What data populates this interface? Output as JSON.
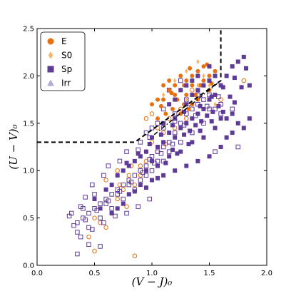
{
  "chart_data": {
    "type": "scatter",
    "xlabel": "(V − J)₀",
    "ylabel": "(U − V)₀",
    "xlim": [
      0.0,
      2.0
    ],
    "ylim": [
      0.0,
      2.5
    ],
    "xticks": [
      "0.0",
      "0.5",
      "1.0",
      "1.5",
      "2.0"
    ],
    "yticks": [
      "0.0",
      "0.5",
      "1.0",
      "1.5",
      "2.0",
      "2.5"
    ],
    "legend_position": "top-left",
    "legend": [
      {
        "label": "E",
        "marker": "circle",
        "color": "#e8700f"
      },
      {
        "label": "S0",
        "marker": "diamond",
        "color": "#f5b468"
      },
      {
        "label": "Sp",
        "marker": "square",
        "color": "#5e3b98"
      },
      {
        "label": "Irr",
        "marker": "triangle",
        "color": "#b3a9d6"
      }
    ],
    "boundary_dashed": [
      [
        0.0,
        1.3
      ],
      [
        0.85,
        1.3
      ],
      [
        1.6,
        1.95
      ],
      [
        1.6,
        2.5
      ]
    ],
    "boundary_dashdot": [
      [
        1.02,
        1.38
      ],
      [
        1.6,
        1.95
      ]
    ],
    "series": [
      {
        "name": "E",
        "marker": "circle",
        "color": "#e8700f",
        "filled": [
          [
            1.0,
            1.7
          ],
          [
            1.05,
            1.75
          ],
          [
            1.1,
            1.9
          ],
          [
            1.15,
            1.95
          ],
          [
            1.2,
            1.9
          ],
          [
            1.25,
            1.85
          ],
          [
            1.3,
            1.95
          ],
          [
            1.35,
            2.0
          ],
          [
            1.4,
            2.05
          ],
          [
            1.45,
            2.1
          ],
          [
            1.5,
            2.0
          ],
          [
            1.55,
            2.05
          ],
          [
            1.2,
            1.8
          ],
          [
            1.25,
            2.0
          ],
          [
            1.3,
            1.8
          ],
          [
            1.35,
            1.9
          ],
          [
            1.1,
            1.75
          ],
          [
            1.15,
            1.85
          ],
          [
            1.4,
            1.85
          ],
          [
            1.45,
            1.95
          ],
          [
            1.22,
            1.75
          ],
          [
            1.28,
            1.7
          ],
          [
            1.32,
            1.65
          ],
          [
            1.18,
            1.65
          ],
          [
            1.4,
            1.75
          ],
          [
            1.5,
            1.85
          ],
          [
            1.12,
            1.6
          ],
          [
            1.05,
            1.55
          ],
          [
            1.25,
            1.6
          ],
          [
            1.35,
            1.7
          ],
          [
            1.38,
            1.8
          ],
          [
            1.42,
            1.9
          ],
          [
            1.28,
            1.9
          ],
          [
            1.17,
            1.82
          ],
          [
            1.08,
            1.68
          ],
          [
            1.48,
            2.12
          ],
          [
            1.52,
            1.92
          ],
          [
            1.33,
            2.08
          ]
        ],
        "open": [
          [
            0.5,
            0.15
          ],
          [
            0.45,
            0.3
          ],
          [
            0.6,
            0.4
          ],
          [
            0.55,
            0.45
          ],
          [
            0.85,
            0.1
          ],
          [
            0.95,
            1.2
          ],
          [
            1.0,
            1.3
          ],
          [
            1.05,
            1.45
          ],
          [
            0.9,
            1.05
          ],
          [
            0.95,
            1.1
          ],
          [
            1.1,
            1.5
          ],
          [
            1.15,
            1.55
          ],
          [
            1.2,
            1.45
          ],
          [
            1.3,
            1.55
          ],
          [
            0.65,
            0.55
          ],
          [
            0.7,
            0.7
          ],
          [
            0.75,
            0.8
          ],
          [
            0.8,
            0.95
          ],
          [
            1.25,
            1.65
          ],
          [
            1.1,
            1.4
          ],
          [
            0.5,
            0.5
          ],
          [
            0.85,
            0.85
          ],
          [
            0.9,
            0.95
          ],
          [
            1.35,
            1.85
          ],
          [
            1.8,
            1.95
          ],
          [
            1.6,
            1.75
          ],
          [
            1.0,
            1.6
          ],
          [
            0.95,
            1.55
          ],
          [
            1.05,
            1.2
          ],
          [
            0.78,
            0.62
          ],
          [
            0.7,
            1.0
          ],
          [
            0.6,
            0.9
          ],
          [
            0.72,
            0.85
          ],
          [
            0.82,
            1.05
          ],
          [
            1.12,
            1.28
          ]
        ]
      },
      {
        "name": "S0",
        "marker": "diamond",
        "color": "#f5b468",
        "filled": [
          [
            1.2,
            1.95
          ],
          [
            1.3,
            2.05
          ],
          [
            1.4,
            2.15
          ],
          [
            1.1,
            1.8
          ],
          [
            1.25,
            1.85
          ],
          [
            1.35,
            1.95
          ],
          [
            1.45,
            2.0
          ],
          [
            1.5,
            1.9
          ],
          [
            1.55,
            1.7
          ],
          [
            1.15,
            1.7
          ],
          [
            1.3,
            1.75
          ],
          [
            1.4,
            1.9
          ]
        ],
        "open": []
      },
      {
        "name": "Sp",
        "marker": "square",
        "color": "#5e3b98",
        "filled": [
          [
            0.5,
            0.7
          ],
          [
            0.55,
            0.6
          ],
          [
            0.6,
            0.8
          ],
          [
            0.65,
            0.85
          ],
          [
            0.7,
            0.95
          ],
          [
            0.75,
            1.0
          ],
          [
            0.8,
            1.05
          ],
          [
            0.85,
            1.1
          ],
          [
            0.9,
            1.15
          ],
          [
            0.95,
            1.2
          ],
          [
            1.0,
            1.1
          ],
          [
            1.05,
            1.25
          ],
          [
            1.1,
            1.3
          ],
          [
            1.15,
            1.4
          ],
          [
            1.2,
            1.35
          ],
          [
            1.25,
            1.45
          ],
          [
            1.3,
            1.5
          ],
          [
            1.35,
            1.55
          ],
          [
            1.4,
            1.6
          ],
          [
            1.45,
            1.65
          ],
          [
            1.5,
            1.75
          ],
          [
            1.55,
            1.8
          ],
          [
            1.6,
            1.9
          ],
          [
            1.65,
            2.0
          ],
          [
            1.7,
            2.1
          ],
          [
            1.75,
            2.15
          ],
          [
            1.8,
            2.2
          ],
          [
            1.85,
            1.9
          ],
          [
            1.2,
            1.55
          ],
          [
            1.3,
            1.7
          ],
          [
            1.1,
            1.5
          ],
          [
            1.0,
            1.35
          ],
          [
            0.95,
            1.0
          ],
          [
            0.9,
            0.85
          ],
          [
            1.05,
            1.05
          ],
          [
            1.15,
            1.15
          ],
          [
            1.25,
            1.2
          ],
          [
            1.35,
            1.3
          ],
          [
            1.45,
            1.35
          ],
          [
            1.55,
            1.45
          ],
          [
            1.65,
            1.55
          ],
          [
            1.7,
            1.4
          ],
          [
            1.6,
            1.25
          ],
          [
            1.5,
            1.15
          ],
          [
            1.4,
            1.1
          ],
          [
            1.3,
            1.05
          ],
          [
            1.2,
            1.0
          ],
          [
            1.1,
            0.95
          ],
          [
            1.0,
            0.9
          ],
          [
            0.8,
            0.75
          ],
          [
            0.75,
            0.65
          ],
          [
            0.7,
            0.6
          ],
          [
            0.65,
            0.55
          ],
          [
            1.35,
            1.95
          ],
          [
            1.4,
            2.0
          ],
          [
            1.45,
            1.9
          ],
          [
            1.5,
            1.95
          ],
          [
            1.25,
            1.85
          ],
          [
            1.3,
            1.9
          ],
          [
            1.2,
            1.75
          ],
          [
            1.15,
            1.7
          ],
          [
            1.35,
            1.8
          ],
          [
            1.4,
            1.85
          ],
          [
            1.5,
            2.1
          ],
          [
            1.55,
            2.0
          ],
          [
            1.6,
            1.55
          ],
          [
            1.65,
            1.35
          ],
          [
            1.7,
            1.6
          ],
          [
            1.75,
            1.5
          ],
          [
            1.8,
            1.45
          ],
          [
            1.85,
            1.55
          ],
          [
            1.12,
            1.08
          ],
          [
            1.22,
            1.18
          ],
          [
            1.32,
            1.28
          ],
          [
            1.42,
            1.42
          ],
          [
            1.52,
            1.52
          ],
          [
            1.62,
            1.62
          ],
          [
            1.72,
            1.72
          ],
          [
            0.85,
            0.78
          ],
          [
            0.95,
            0.82
          ],
          [
            1.05,
            0.92
          ],
          [
            1.18,
            1.22
          ],
          [
            1.28,
            1.38
          ],
          [
            1.38,
            1.48
          ],
          [
            1.48,
            1.58
          ],
          [
            1.58,
            1.68
          ],
          [
            1.68,
            1.78
          ],
          [
            1.78,
            1.88
          ],
          [
            1.28,
            1.62
          ],
          [
            1.18,
            1.48
          ],
          [
            1.08,
            1.38
          ],
          [
            0.98,
            1.28
          ],
          [
            0.88,
            1.18
          ],
          [
            0.78,
            1.08
          ],
          [
            1.42,
            1.68
          ],
          [
            1.52,
            1.78
          ],
          [
            1.62,
            1.88
          ],
          [
            1.72,
            1.98
          ],
          [
            1.82,
            2.08
          ],
          [
            1.33,
            1.42
          ],
          [
            1.43,
            1.52
          ],
          [
            1.53,
            1.62
          ]
        ],
        "open": [
          [
            0.3,
            0.55
          ],
          [
            0.35,
            0.45
          ],
          [
            0.4,
            0.5
          ],
          [
            0.45,
            0.55
          ],
          [
            0.5,
            0.6
          ],
          [
            0.55,
            0.65
          ],
          [
            0.6,
            0.7
          ],
          [
            0.65,
            0.75
          ],
          [
            0.7,
            0.8
          ],
          [
            0.75,
            0.85
          ],
          [
            0.8,
            0.9
          ],
          [
            0.85,
            0.95
          ],
          [
            0.9,
            1.0
          ],
          [
            0.95,
            1.05
          ],
          [
            1.0,
            1.15
          ],
          [
            1.05,
            1.2
          ],
          [
            1.1,
            1.25
          ],
          [
            1.15,
            1.3
          ],
          [
            1.2,
            1.4
          ],
          [
            1.25,
            1.5
          ],
          [
            1.3,
            1.6
          ],
          [
            1.35,
            1.65
          ],
          [
            1.4,
            1.7
          ],
          [
            1.45,
            1.75
          ],
          [
            1.5,
            1.8
          ],
          [
            1.55,
            1.65
          ],
          [
            1.6,
            1.7
          ],
          [
            1.7,
            1.65
          ],
          [
            1.75,
            1.25
          ],
          [
            1.55,
            1.2
          ],
          [
            1.45,
            1.5
          ],
          [
            1.35,
            1.4
          ],
          [
            1.25,
            1.3
          ],
          [
            1.15,
            1.2
          ],
          [
            1.05,
            1.1
          ],
          [
            0.95,
            0.95
          ],
          [
            0.85,
            0.8
          ],
          [
            0.75,
            0.7
          ],
          [
            0.65,
            0.6
          ],
          [
            0.55,
            0.5
          ],
          [
            0.45,
            0.4
          ],
          [
            0.35,
            0.35
          ],
          [
            0.4,
            0.6
          ],
          [
            0.5,
            0.75
          ],
          [
            0.6,
            0.65
          ],
          [
            0.7,
            0.75
          ],
          [
            0.8,
            0.85
          ],
          [
            0.9,
            0.9
          ],
          [
            1.0,
            1.0
          ],
          [
            1.1,
            1.1
          ],
          [
            0.95,
            1.4
          ],
          [
            1.0,
            1.45
          ],
          [
            0.9,
            1.3
          ],
          [
            1.05,
            1.5
          ],
          [
            1.2,
            1.6
          ],
          [
            1.3,
            1.75
          ],
          [
            1.4,
            1.8
          ],
          [
            1.5,
            1.65
          ],
          [
            1.6,
            1.6
          ],
          [
            1.25,
            1.95
          ],
          [
            1.15,
            1.85
          ],
          [
            1.1,
            1.65
          ],
          [
            0.98,
            1.35
          ],
          [
            0.78,
            1.2
          ],
          [
            0.72,
            1.1
          ],
          [
            0.62,
            1.05
          ],
          [
            0.58,
            0.95
          ],
          [
            0.48,
            0.85
          ],
          [
            0.42,
            0.72
          ],
          [
            0.38,
            0.62
          ],
          [
            0.32,
            0.42
          ],
          [
            0.42,
            0.48
          ],
          [
            0.52,
            0.58
          ],
          [
            0.62,
            0.68
          ],
          [
            0.72,
            0.78
          ],
          [
            0.82,
            0.88
          ],
          [
            0.92,
            0.98
          ],
          [
            1.02,
            1.08
          ],
          [
            0.88,
            1.22
          ],
          [
            0.98,
            1.12
          ],
          [
            1.08,
            1.18
          ],
          [
            1.18,
            1.28
          ],
          [
            1.28,
            1.48
          ],
          [
            1.38,
            1.58
          ],
          [
            1.48,
            1.68
          ],
          [
            1.58,
            1.78
          ],
          [
            0.28,
            0.52
          ],
          [
            0.38,
            0.3
          ],
          [
            0.48,
            0.38
          ],
          [
            0.58,
            0.45
          ],
          [
            0.68,
            0.52
          ],
          [
            0.78,
            0.55
          ],
          [
            0.88,
            0.62
          ],
          [
            0.98,
            0.7
          ],
          [
            0.35,
            0.12
          ],
          [
            0.55,
            0.2
          ],
          [
            0.45,
            0.22
          ],
          [
            1.1,
            1.45
          ],
          [
            1.2,
            1.52
          ]
        ]
      },
      {
        "name": "Irr",
        "marker": "triangle",
        "color": "#b3a9d6",
        "filled": [],
        "open": []
      }
    ]
  }
}
